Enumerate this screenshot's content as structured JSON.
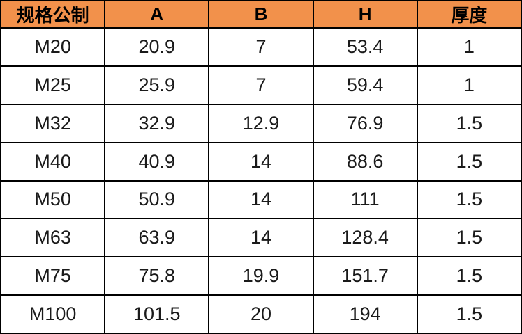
{
  "table": {
    "headers": [
      "规格公制",
      "A",
      "B",
      "H",
      "厚度"
    ],
    "rows": [
      [
        "M20",
        "20.9",
        "7",
        "53.4",
        "1"
      ],
      [
        "M25",
        "25.9",
        "7",
        "59.4",
        "1"
      ],
      [
        "M32",
        "32.9",
        "12.9",
        "76.9",
        "1.5"
      ],
      [
        "M40",
        "40.9",
        "14",
        "88.6",
        "1.5"
      ],
      [
        "M50",
        "50.9",
        "14",
        "111",
        "1.5"
      ],
      [
        "M63",
        "63.9",
        "14",
        "128.4",
        "1.5"
      ],
      [
        "M75",
        "75.8",
        "19.9",
        "151.7",
        "1.5"
      ],
      [
        "M100",
        "101.5",
        "20",
        "194",
        "1.5"
      ]
    ]
  },
  "colors": {
    "header_bg": "#F2914B",
    "border": "#000000",
    "cell_bg": "#FFFFFF",
    "text": "#1A1A1A"
  }
}
